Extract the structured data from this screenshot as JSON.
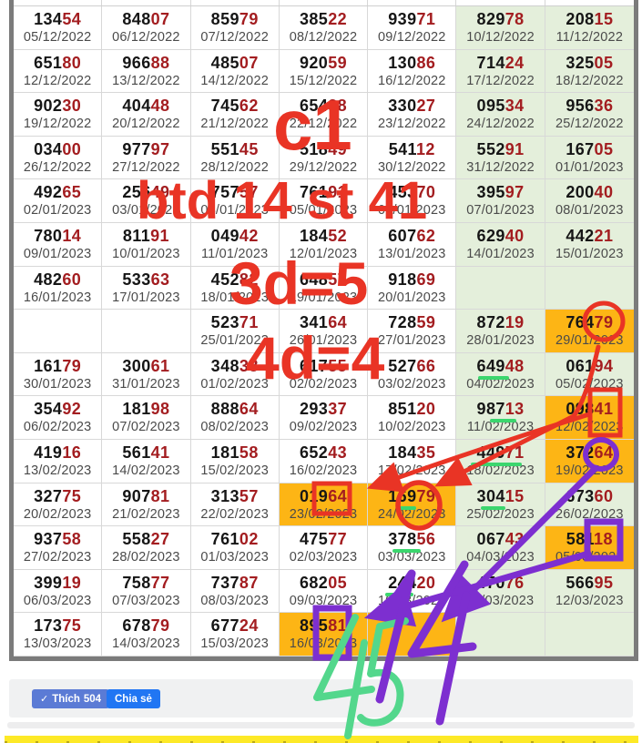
{
  "table": {
    "rows": [
      {
        "cells": [
          {
            "b": "134",
            "r": "54",
            "d": "05/12/2022",
            "bg": "w"
          },
          {
            "b": "848",
            "r": "07",
            "d": "06/12/2022",
            "bg": "w"
          },
          {
            "b": "859",
            "r": "79",
            "d": "07/12/2022",
            "bg": "w"
          },
          {
            "b": "385",
            "r": "22",
            "d": "08/12/2022",
            "bg": "w"
          },
          {
            "b": "939",
            "r": "71",
            "d": "09/12/2022",
            "bg": "w"
          },
          {
            "b": "829",
            "r": "78",
            "d": "10/12/2022",
            "bg": "g"
          },
          {
            "b": "208",
            "r": "15",
            "d": "11/12/2022",
            "bg": "g"
          }
        ]
      },
      {
        "cells": [
          {
            "b": "651",
            "r": "80",
            "d": "12/12/2022",
            "bg": "w"
          },
          {
            "b": "966",
            "r": "88",
            "d": "13/12/2022",
            "bg": "w"
          },
          {
            "b": "485",
            "r": "07",
            "d": "14/12/2022",
            "bg": "w"
          },
          {
            "b": "920",
            "r": "59",
            "d": "15/12/2022",
            "bg": "w"
          },
          {
            "b": "130",
            "r": "86",
            "d": "16/12/2022",
            "bg": "w"
          },
          {
            "b": "714",
            "r": "24",
            "d": "17/12/2022",
            "bg": "g"
          },
          {
            "b": "325",
            "r": "05",
            "d": "18/12/2022",
            "bg": "g"
          }
        ]
      },
      {
        "cells": [
          {
            "b": "902",
            "r": "30",
            "d": "19/12/2022",
            "bg": "w"
          },
          {
            "b": "404",
            "r": "48",
            "d": "20/12/2022",
            "bg": "w"
          },
          {
            "b": "745",
            "r": "62",
            "d": "21/12/2022",
            "bg": "w"
          },
          {
            "b": "654",
            "r": "38",
            "d": "22/12/2022",
            "bg": "w"
          },
          {
            "b": "330",
            "r": "27",
            "d": "23/12/2022",
            "bg": "w"
          },
          {
            "b": "095",
            "r": "34",
            "d": "24/12/2022",
            "bg": "g"
          },
          {
            "b": "956",
            "r": "36",
            "d": "25/12/2022",
            "bg": "g"
          }
        ]
      },
      {
        "cells": [
          {
            "b": "034",
            "r": "00",
            "d": "26/12/2022",
            "bg": "w"
          },
          {
            "b": "977",
            "r": "97",
            "d": "27/12/2022",
            "bg": "w"
          },
          {
            "b": "551",
            "r": "45",
            "d": "28/12/2022",
            "bg": "w"
          },
          {
            "b": "518",
            "r": "49",
            "d": "29/12/2022",
            "bg": "w"
          },
          {
            "b": "541",
            "r": "12",
            "d": "30/12/2022",
            "bg": "w"
          },
          {
            "b": "552",
            "r": "91",
            "d": "31/12/2022",
            "bg": "g"
          },
          {
            "b": "167",
            "r": "05",
            "d": "01/01/2023",
            "bg": "g"
          }
        ]
      },
      {
        "cells": [
          {
            "b": "492",
            "r": "65",
            "d": "02/01/2023",
            "bg": "w"
          },
          {
            "b": "256",
            "r": "49",
            "d": "03/01/2023",
            "bg": "w"
          },
          {
            "b": "757",
            "r": "57",
            "d": "04/01/2023",
            "bg": "w"
          },
          {
            "b": "761",
            "r": "91",
            "d": "05/01/2023",
            "bg": "w"
          },
          {
            "b": "453",
            "r": "70",
            "d": "06/01/2023",
            "bg": "w"
          },
          {
            "b": "395",
            "r": "97",
            "d": "07/01/2023",
            "bg": "g"
          },
          {
            "b": "200",
            "r": "40",
            "d": "08/01/2023",
            "bg": "g"
          }
        ]
      },
      {
        "cells": [
          {
            "b": "780",
            "r": "14",
            "d": "09/01/2023",
            "bg": "w"
          },
          {
            "b": "811",
            "r": "91",
            "d": "10/01/2023",
            "bg": "w"
          },
          {
            "b": "049",
            "r": "42",
            "d": "11/01/2023",
            "bg": "w"
          },
          {
            "b": "184",
            "r": "52",
            "d": "12/01/2023",
            "bg": "w"
          },
          {
            "b": "607",
            "r": "62",
            "d": "13/01/2023",
            "bg": "w"
          },
          {
            "b": "629",
            "r": "40",
            "d": "14/01/2023",
            "bg": "g"
          },
          {
            "b": "442",
            "r": "21",
            "d": "15/01/2023",
            "bg": "g"
          }
        ]
      },
      {
        "cells": [
          {
            "b": "482",
            "r": "60",
            "d": "16/01/2023",
            "bg": "w"
          },
          {
            "b": "533",
            "r": "63",
            "d": "17/01/2023",
            "bg": "w"
          },
          {
            "b": "452",
            "r": "82",
            "d": "18/01/2023",
            "bg": "w"
          },
          {
            "b": "648",
            "r": "57",
            "d": "19/01/2023",
            "bg": "w"
          },
          {
            "b": "918",
            "r": "69",
            "d": "20/01/2023",
            "bg": "w"
          },
          {
            "b": "",
            "r": "",
            "d": "",
            "bg": "g"
          },
          {
            "b": "",
            "r": "",
            "d": "",
            "bg": "g"
          }
        ]
      },
      {
        "cells": [
          {
            "b": "",
            "r": "",
            "d": "",
            "bg": "w"
          },
          {
            "b": "",
            "r": "",
            "d": "",
            "bg": "w"
          },
          {
            "b": "523",
            "r": "71",
            "d": "25/01/2023",
            "bg": "w"
          },
          {
            "b": "341",
            "r": "64",
            "d": "26/01/2023",
            "bg": "w"
          },
          {
            "b": "728",
            "r": "59",
            "d": "27/01/2023",
            "bg": "w"
          },
          {
            "b": "872",
            "r": "19",
            "d": "28/01/2023",
            "bg": "g"
          },
          {
            "b": "764",
            "r": "79",
            "d": "29/01/2023",
            "bg": "o"
          }
        ]
      },
      {
        "cells": [
          {
            "b": "161",
            "r": "79",
            "d": "30/01/2023",
            "bg": "w"
          },
          {
            "b": "300",
            "r": "61",
            "d": "31/01/2023",
            "bg": "w"
          },
          {
            "b": "348",
            "r": "38",
            "d": "01/02/2023",
            "bg": "w"
          },
          {
            "b": "617",
            "r": "55",
            "d": "02/02/2023",
            "bg": "w"
          },
          {
            "b": "527",
            "r": "66",
            "d": "03/02/2023",
            "bg": "w"
          },
          {
            "b": "649",
            "r": "48",
            "d": "04/02/2023",
            "bg": "g",
            "ul": [
              24,
              36
            ]
          },
          {
            "b": "061",
            "r": "94",
            "d": "05/02/2023",
            "bg": "g"
          }
        ]
      },
      {
        "cells": [
          {
            "b": "354",
            "r": "92",
            "d": "06/02/2023",
            "bg": "w"
          },
          {
            "b": "181",
            "r": "98",
            "d": "07/02/2023",
            "bg": "w"
          },
          {
            "b": "888",
            "r": "64",
            "d": "08/02/2023",
            "bg": "w"
          },
          {
            "b": "293",
            "r": "37",
            "d": "09/02/2023",
            "bg": "w"
          },
          {
            "b": "851",
            "r": "20",
            "d": "10/02/2023",
            "bg": "w"
          },
          {
            "b": "987",
            "r": "13",
            "d": "11/02/2023",
            "bg": "g",
            "ul": [
              38,
              30
            ]
          },
          {
            "b": "098",
            "r": "41",
            "d": "12/02/2023",
            "bg": "o"
          }
        ]
      },
      {
        "cells": [
          {
            "b": "419",
            "r": "16",
            "d": "13/02/2023",
            "bg": "w"
          },
          {
            "b": "561",
            "r": "41",
            "d": "14/02/2023",
            "bg": "w"
          },
          {
            "b": "181",
            "r": "58",
            "d": "15/02/2023",
            "bg": "w"
          },
          {
            "b": "652",
            "r": "43",
            "d": "16/02/2023",
            "bg": "w"
          },
          {
            "b": "184",
            "r": "35",
            "d": "17/02/2023",
            "bg": "w"
          },
          {
            "b": "449",
            "r": "71",
            "d": "18/02/2023",
            "bg": "g",
            "ul": [
              16,
              58
            ]
          },
          {
            "b": "372",
            "r": "64",
            "d": "19/02/2023",
            "bg": "o"
          }
        ]
      },
      {
        "cells": [
          {
            "b": "327",
            "r": "75",
            "d": "20/02/2023",
            "bg": "w"
          },
          {
            "b": "907",
            "r": "81",
            "d": "21/02/2023",
            "bg": "w"
          },
          {
            "b": "313",
            "r": "57",
            "d": "22/02/2023",
            "bg": "w"
          },
          {
            "b": "019",
            "r": "64",
            "d": "23/02/2023",
            "bg": "o"
          },
          {
            "b": "169",
            "r": "79",
            "d": "24/02/2023",
            "bg": "o",
            "ul": [
              33,
              22
            ]
          },
          {
            "b": "304",
            "r": "15",
            "d": "25/02/2023",
            "bg": "g",
            "ul": [
              28,
              28
            ]
          },
          {
            "b": "673",
            "r": "60",
            "d": "26/02/2023",
            "bg": "g"
          }
        ]
      },
      {
        "cells": [
          {
            "b": "937",
            "r": "58",
            "d": "27/02/2023",
            "bg": "w"
          },
          {
            "b": "558",
            "r": "27",
            "d": "28/02/2023",
            "bg": "w"
          },
          {
            "b": "761",
            "r": "02",
            "d": "01/03/2023",
            "bg": "w"
          },
          {
            "b": "475",
            "r": "77",
            "d": "02/03/2023",
            "bg": "w"
          },
          {
            "b": "378",
            "r": "56",
            "d": "03/03/2023",
            "bg": "w",
            "ul": [
              28,
              32
            ]
          },
          {
            "b": "067",
            "r": "43",
            "d": "04/03/2023",
            "bg": "g"
          },
          {
            "b": "581",
            "r": "18",
            "d": "05/03/2023",
            "bg": "o"
          }
        ]
      },
      {
        "cells": [
          {
            "b": "399",
            "r": "19",
            "d": "06/03/2023",
            "bg": "w"
          },
          {
            "b": "758",
            "r": "77",
            "d": "07/03/2023",
            "bg": "w"
          },
          {
            "b": "737",
            "r": "87",
            "d": "08/03/2023",
            "bg": "w"
          },
          {
            "b": "682",
            "r": "05",
            "d": "09/03/2023",
            "bg": "w"
          },
          {
            "b": "244",
            "r": "20",
            "d": "10/03/2023",
            "bg": "w",
            "ul": [
              20,
              32
            ]
          },
          {
            "b": "470",
            "r": "76",
            "d": "11/03/2023",
            "bg": "g"
          },
          {
            "b": "566",
            "r": "95",
            "d": "12/03/2023",
            "bg": "g"
          }
        ]
      },
      {
        "cells": [
          {
            "b": "173",
            "r": "75",
            "d": "13/03/2023",
            "bg": "w"
          },
          {
            "b": "678",
            "r": "79",
            "d": "14/03/2023",
            "bg": "w"
          },
          {
            "b": "677",
            "r": "24",
            "d": "15/03/2023",
            "bg": "w"
          },
          {
            "b": "895",
            "r": "81",
            "d": "16/03/2023",
            "bg": "o"
          },
          {
            "b": "",
            "r": "",
            "d": "",
            "bg": "o"
          },
          {
            "b": "",
            "r": "",
            "d": "",
            "bg": "g"
          },
          {
            "b": "",
            "r": "",
            "d": "",
            "bg": "g"
          }
        ]
      }
    ]
  },
  "annotations": {
    "c1": "c1",
    "btd": "btd 14 st 41",
    "eq3": "3d=5",
    "eq4": "4d=4",
    "hand_green": "45",
    "hand_purple": "14"
  },
  "footer": {
    "check_icon": "✓",
    "like_label": "Thích",
    "like_count": "504",
    "share_label": "Chia sẻ"
  },
  "colors": {
    "number_black": "#161616",
    "number_red": "#a31d20",
    "green_bg": "#e4efdb",
    "orange_bg": "#fdb515",
    "annotation_red": "#e93425",
    "annotation_purple": "#7d2fd0",
    "hand_green": "#53d78c",
    "underline_green": "#3bd66e",
    "like_button_blue": "#5b7bd5",
    "share_button_blue": "#2176f3",
    "highlight_strip_yellow": "#fde927"
  }
}
